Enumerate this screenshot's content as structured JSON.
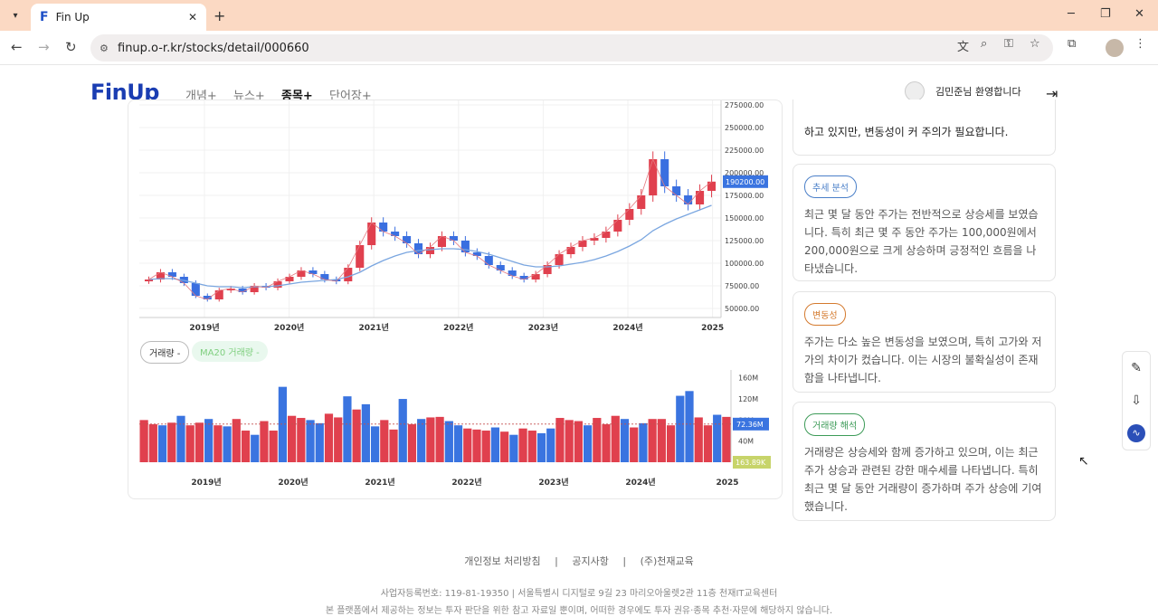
{
  "browser": {
    "tab_title": "Fin Up",
    "tab_favicon": "F",
    "url": "finup.o-r.kr/stocks/detail/000660"
  },
  "header": {
    "logo": "FinUp",
    "menu": [
      "개념+",
      "뉴스+",
      "종목+",
      "단어장+"
    ],
    "active_menu": "종목+",
    "greeting": "김민준님 환영합니다"
  },
  "chart_pills": {
    "volume": "거래량 -",
    "ma20": "MA20 거래량 -"
  },
  "analysis": {
    "intro_tail": "하고 있지만, 변동성이 커 주의가 필요합니다.",
    "cards": [
      {
        "tag": "추세 분석",
        "tag_color": "#4a7fc8",
        "text": "최근 몇 달 동안 주가는 전반적으로 상승세를 보였습니다. 특히 최근 몇 주 동안 주가는 100,000원에서 200,000원으로 크게 상승하며 긍정적인 흐름을 나타냈습니다."
      },
      {
        "tag": "변동성",
        "tag_color": "#d47a2e",
        "text": "주가는 다소 높은 변동성을 보였으며, 특히 고가와 저가의 차이가 컸습니다. 이는 시장의 불확실성이 존재함을 나타냅니다."
      },
      {
        "tag": "거래량 해석",
        "tag_color": "#3d9b58",
        "text": "거래량은 상승세와 함께 증가하고 있으며, 이는 최근 주가 상승과 관련된 강한 매수세를 나타냅니다. 특히 최근 몇 달 동안 거래량이 증가하며 주가 상승에 기여했습니다."
      }
    ]
  },
  "footer": {
    "links": [
      "개인정보 처리방침",
      "공지사항",
      "(주)천재교육"
    ],
    "separator": "|",
    "biz_line": "사업자등록번호: 119-81-19350   |   서울특별시 디지털로 9길 23 마리오아울렛2관 11층 천재IT교육센터",
    "disclaimer": "본 플랫폼에서 제공하는 정보는 투자 판단을 위한 참고 자료일 뿐이며, 어떠한 경우에도 투자 권유·종목 추천·자문에 해당하지 않습니다."
  },
  "chart_data": [
    {
      "type": "candlestick",
      "x_tick_labels": [
        "2019년",
        "2020년",
        "2021년",
        "2022년",
        "2023년",
        "2024년",
        "2025"
      ],
      "y_tick_labels": [
        "50000.00",
        "75000.00",
        "100000.00",
        "125000.00",
        "150000.00",
        "175000.00",
        "200000.00",
        "225000.00",
        "250000.00",
        "275000.00"
      ],
      "ylim": [
        40000,
        280000
      ],
      "last_price_label": "190200.00",
      "up_color": "#e0404e",
      "down_color": "#3a6fe0",
      "ma_color": "#7aa6e0",
      "closes": [
        82000,
        90000,
        85000,
        78000,
        64000,
        60000,
        70000,
        72000,
        68000,
        75000,
        73000,
        80000,
        85000,
        92000,
        88000,
        82000,
        80000,
        95000,
        120000,
        145000,
        135000,
        130000,
        122000,
        110000,
        118000,
        130000,
        125000,
        112000,
        108000,
        98000,
        92000,
        86000,
        82000,
        88000,
        98000,
        110000,
        118000,
        125000,
        128000,
        135000,
        148000,
        160000,
        175000,
        215000,
        185000,
        175000,
        165000,
        180000,
        190200
      ],
      "ma": [
        82000,
        83000,
        83000,
        81000,
        78000,
        75000,
        74000,
        74000,
        73000,
        74000,
        74000,
        75000,
        77000,
        79000,
        80000,
        81000,
        82000,
        85000,
        90000,
        97000,
        103000,
        108000,
        112000,
        114000,
        115000,
        116000,
        116000,
        115000,
        113000,
        110000,
        106000,
        102000,
        98000,
        96000,
        96000,
        97000,
        99000,
        101000,
        104000,
        108000,
        113000,
        119000,
        126000,
        136000,
        143000,
        149000,
        154000,
        159000,
        164000
      ]
    },
    {
      "type": "bar",
      "x_tick_labels": [
        "2019년",
        "2020년",
        "2021년",
        "2022년",
        "2023년",
        "2024년",
        "2025"
      ],
      "y_tick_labels": [
        "40M",
        "80M",
        "120M",
        "160M"
      ],
      "ylim": [
        0,
        175
      ],
      "unit": "M",
      "ma20_label": "72.36M",
      "last_volume_label": "163.89K",
      "ma20_value": 72.36,
      "volumes": [
        80,
        72,
        70,
        75,
        88,
        70,
        75,
        82,
        70,
        68,
        82,
        60,
        52,
        78,
        60,
        143,
        88,
        84,
        80,
        74,
        92,
        85,
        125,
        100,
        110,
        68,
        80,
        62,
        120,
        72,
        82,
        85,
        86,
        78,
        70,
        64,
        62,
        60,
        66,
        58,
        52,
        64,
        60,
        55,
        64,
        84,
        80,
        78,
        70,
        84,
        72,
        88,
        82,
        66,
        74,
        82,
        82,
        70,
        126,
        135,
        85,
        70,
        90,
        86
      ],
      "vol_up": [
        1,
        1,
        0,
        1,
        0,
        1,
        1,
        0,
        1,
        0,
        1,
        1,
        0,
        1,
        1,
        0,
        1,
        1,
        0,
        0,
        1,
        1,
        0,
        1,
        0,
        0,
        1,
        1,
        0,
        1,
        0,
        1,
        1,
        0,
        0,
        1,
        1,
        1,
        0,
        1,
        0,
        1,
        1,
        0,
        0,
        1,
        1,
        1,
        0,
        1,
        1,
        1,
        0,
        1,
        0,
        1,
        1,
        1,
        0,
        0,
        1,
        1,
        0,
        1
      ]
    }
  ]
}
